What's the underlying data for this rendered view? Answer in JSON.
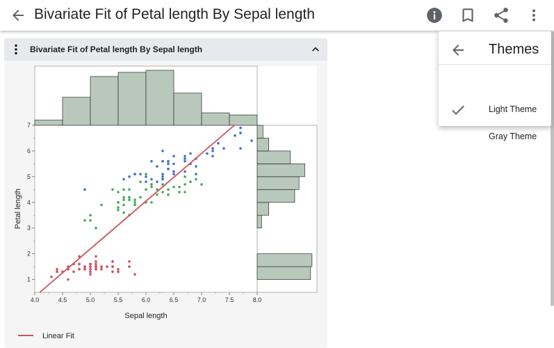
{
  "app": {
    "title": "Bivariate Fit of Petal length By Sepal length"
  },
  "icons": {
    "back": "back-arrow-icon",
    "info": "info-icon",
    "bookmark": "bookmark-icon",
    "share": "share-icon",
    "more": "more-vert-icon"
  },
  "panel": {
    "title": "Bivariate Fit of Petal length By Sepal length"
  },
  "themes_menu": {
    "title": "Themes",
    "items": [
      {
        "label": "Light Theme",
        "selected": true
      },
      {
        "label": "Gray Theme",
        "selected": false
      }
    ]
  },
  "colors": {
    "setosa": "#d04f5c",
    "versicolor": "#44a95a",
    "virginica": "#3e72d0",
    "hist": "#b8c9bc",
    "fit": "#d04f5c"
  },
  "chart_data": {
    "type": "scatter",
    "xlabel": "Sepal length",
    "ylabel": "Petal length",
    "xlim": [
      4.0,
      8.0
    ],
    "ylim": [
      0.5,
      7.0
    ],
    "x_ticks": [
      "4.0",
      "4.5",
      "5.0",
      "5.5",
      "6.0",
      "6.5",
      "7.0",
      "7.5",
      "8.0"
    ],
    "y_ticks": [
      "1",
      "2",
      "3",
      "4",
      "5",
      "6",
      "7"
    ],
    "legend": [
      "Linear Fit"
    ],
    "fit": {
      "slope": 1.858,
      "intercept": -7.101
    },
    "x_histogram": {
      "bins": [
        4.0,
        4.5,
        5.0,
        5.5,
        6.0,
        6.5,
        7.0,
        7.5,
        8.0
      ],
      "counts": [
        5,
        27,
        47,
        51,
        53,
        31,
        12,
        10
      ]
    },
    "y_histogram": {
      "bins": [
        1.0,
        1.5,
        2.0,
        2.5,
        3.0,
        3.5,
        4.0,
        4.5,
        5.0,
        5.5,
        6.0,
        6.5,
        7.0
      ],
      "counts": [
        37,
        38,
        0,
        0,
        3,
        8,
        26,
        29,
        33,
        23,
        8,
        4
      ]
    },
    "series": [
      {
        "name": "setosa",
        "points": [
          [
            5.1,
            1.4
          ],
          [
            4.9,
            1.4
          ],
          [
            4.7,
            1.3
          ],
          [
            4.6,
            1.5
          ],
          [
            5.0,
            1.4
          ],
          [
            5.4,
            1.7
          ],
          [
            4.6,
            1.4
          ],
          [
            5.0,
            1.5
          ],
          [
            4.4,
            1.4
          ],
          [
            4.9,
            1.5
          ],
          [
            5.4,
            1.5
          ],
          [
            4.8,
            1.6
          ],
          [
            4.8,
            1.4
          ],
          [
            4.3,
            1.1
          ],
          [
            5.8,
            1.2
          ],
          [
            5.7,
            1.5
          ],
          [
            5.4,
            1.3
          ],
          [
            5.1,
            1.4
          ],
          [
            5.7,
            1.7
          ],
          [
            5.1,
            1.5
          ],
          [
            5.4,
            1.7
          ],
          [
            5.1,
            1.5
          ],
          [
            4.6,
            1.0
          ],
          [
            5.1,
            1.7
          ],
          [
            4.8,
            1.9
          ],
          [
            5.0,
            1.6
          ],
          [
            5.0,
            1.6
          ],
          [
            5.2,
            1.5
          ],
          [
            5.2,
            1.4
          ],
          [
            4.7,
            1.6
          ],
          [
            4.8,
            1.6
          ],
          [
            5.4,
            1.5
          ],
          [
            5.2,
            1.5
          ],
          [
            5.5,
            1.4
          ],
          [
            4.9,
            1.5
          ],
          [
            5.0,
            1.2
          ],
          [
            5.5,
            1.3
          ],
          [
            4.9,
            1.4
          ],
          [
            4.4,
            1.3
          ],
          [
            5.1,
            1.5
          ],
          [
            5.0,
            1.3
          ],
          [
            4.5,
            1.3
          ],
          [
            4.4,
            1.3
          ],
          [
            5.0,
            1.6
          ],
          [
            5.1,
            1.9
          ],
          [
            4.8,
            1.4
          ],
          [
            5.1,
            1.6
          ],
          [
            4.6,
            1.4
          ],
          [
            5.3,
            1.5
          ],
          [
            5.0,
            1.4
          ]
        ]
      },
      {
        "name": "versicolor",
        "points": [
          [
            7.0,
            4.7
          ],
          [
            6.4,
            4.5
          ],
          [
            6.9,
            4.9
          ],
          [
            5.5,
            4.0
          ],
          [
            6.5,
            4.6
          ],
          [
            5.7,
            4.5
          ],
          [
            6.3,
            4.7
          ],
          [
            4.9,
            3.3
          ],
          [
            6.6,
            4.6
          ],
          [
            5.2,
            3.9
          ],
          [
            5.0,
            3.5
          ],
          [
            5.9,
            4.2
          ],
          [
            6.0,
            4.0
          ],
          [
            6.1,
            4.7
          ],
          [
            5.6,
            3.6
          ],
          [
            6.7,
            4.4
          ],
          [
            5.6,
            4.5
          ],
          [
            5.8,
            4.1
          ],
          [
            6.2,
            4.5
          ],
          [
            5.6,
            3.9
          ],
          [
            5.9,
            4.8
          ],
          [
            6.1,
            4.0
          ],
          [
            6.3,
            4.9
          ],
          [
            6.1,
            4.7
          ],
          [
            6.4,
            4.3
          ],
          [
            6.6,
            4.4
          ],
          [
            6.8,
            4.8
          ],
          [
            6.7,
            5.0
          ],
          [
            6.0,
            4.5
          ],
          [
            5.7,
            3.5
          ],
          [
            5.5,
            3.8
          ],
          [
            5.5,
            3.7
          ],
          [
            5.8,
            3.9
          ],
          [
            6.0,
            5.1
          ],
          [
            5.4,
            4.5
          ],
          [
            6.0,
            4.5
          ],
          [
            6.7,
            4.7
          ],
          [
            6.3,
            4.4
          ],
          [
            5.6,
            4.1
          ],
          [
            5.5,
            4.0
          ],
          [
            5.5,
            4.4
          ],
          [
            6.1,
            4.6
          ],
          [
            5.8,
            4.0
          ],
          [
            5.0,
            3.3
          ],
          [
            5.6,
            4.2
          ],
          [
            5.7,
            4.2
          ],
          [
            5.7,
            4.2
          ],
          [
            6.2,
            4.3
          ],
          [
            5.1,
            3.0
          ],
          [
            5.7,
            4.1
          ]
        ]
      },
      {
        "name": "virginica",
        "points": [
          [
            6.3,
            6.0
          ],
          [
            5.8,
            5.1
          ],
          [
            7.1,
            5.9
          ],
          [
            6.3,
            5.6
          ],
          [
            6.5,
            5.8
          ],
          [
            7.6,
            6.6
          ],
          [
            4.9,
            4.5
          ],
          [
            7.3,
            6.3
          ],
          [
            6.7,
            5.8
          ],
          [
            7.2,
            6.1
          ],
          [
            6.5,
            5.1
          ],
          [
            6.4,
            5.3
          ],
          [
            6.8,
            5.5
          ],
          [
            5.7,
            5.0
          ],
          [
            5.8,
            5.1
          ],
          [
            6.4,
            5.3
          ],
          [
            6.5,
            5.5
          ],
          [
            7.7,
            6.7
          ],
          [
            7.7,
            6.9
          ],
          [
            6.0,
            5.0
          ],
          [
            6.9,
            5.7
          ],
          [
            5.6,
            4.9
          ],
          [
            7.7,
            6.7
          ],
          [
            6.3,
            4.9
          ],
          [
            6.7,
            5.7
          ],
          [
            7.2,
            6.0
          ],
          [
            6.2,
            4.8
          ],
          [
            6.1,
            4.9
          ],
          [
            6.4,
            5.6
          ],
          [
            7.2,
            5.8
          ],
          [
            7.4,
            6.1
          ],
          [
            7.9,
            6.4
          ],
          [
            6.4,
            5.6
          ],
          [
            6.3,
            5.1
          ],
          [
            6.1,
            5.6
          ],
          [
            7.7,
            6.1
          ],
          [
            6.3,
            5.6
          ],
          [
            6.4,
            5.5
          ],
          [
            6.0,
            4.8
          ],
          [
            6.9,
            5.4
          ],
          [
            6.7,
            5.6
          ],
          [
            6.9,
            5.1
          ],
          [
            5.8,
            5.1
          ],
          [
            6.8,
            5.9
          ],
          [
            6.7,
            5.7
          ],
          [
            6.7,
            5.2
          ],
          [
            6.3,
            5.0
          ],
          [
            6.5,
            5.2
          ],
          [
            6.2,
            5.4
          ],
          [
            5.9,
            5.1
          ]
        ]
      }
    ]
  }
}
